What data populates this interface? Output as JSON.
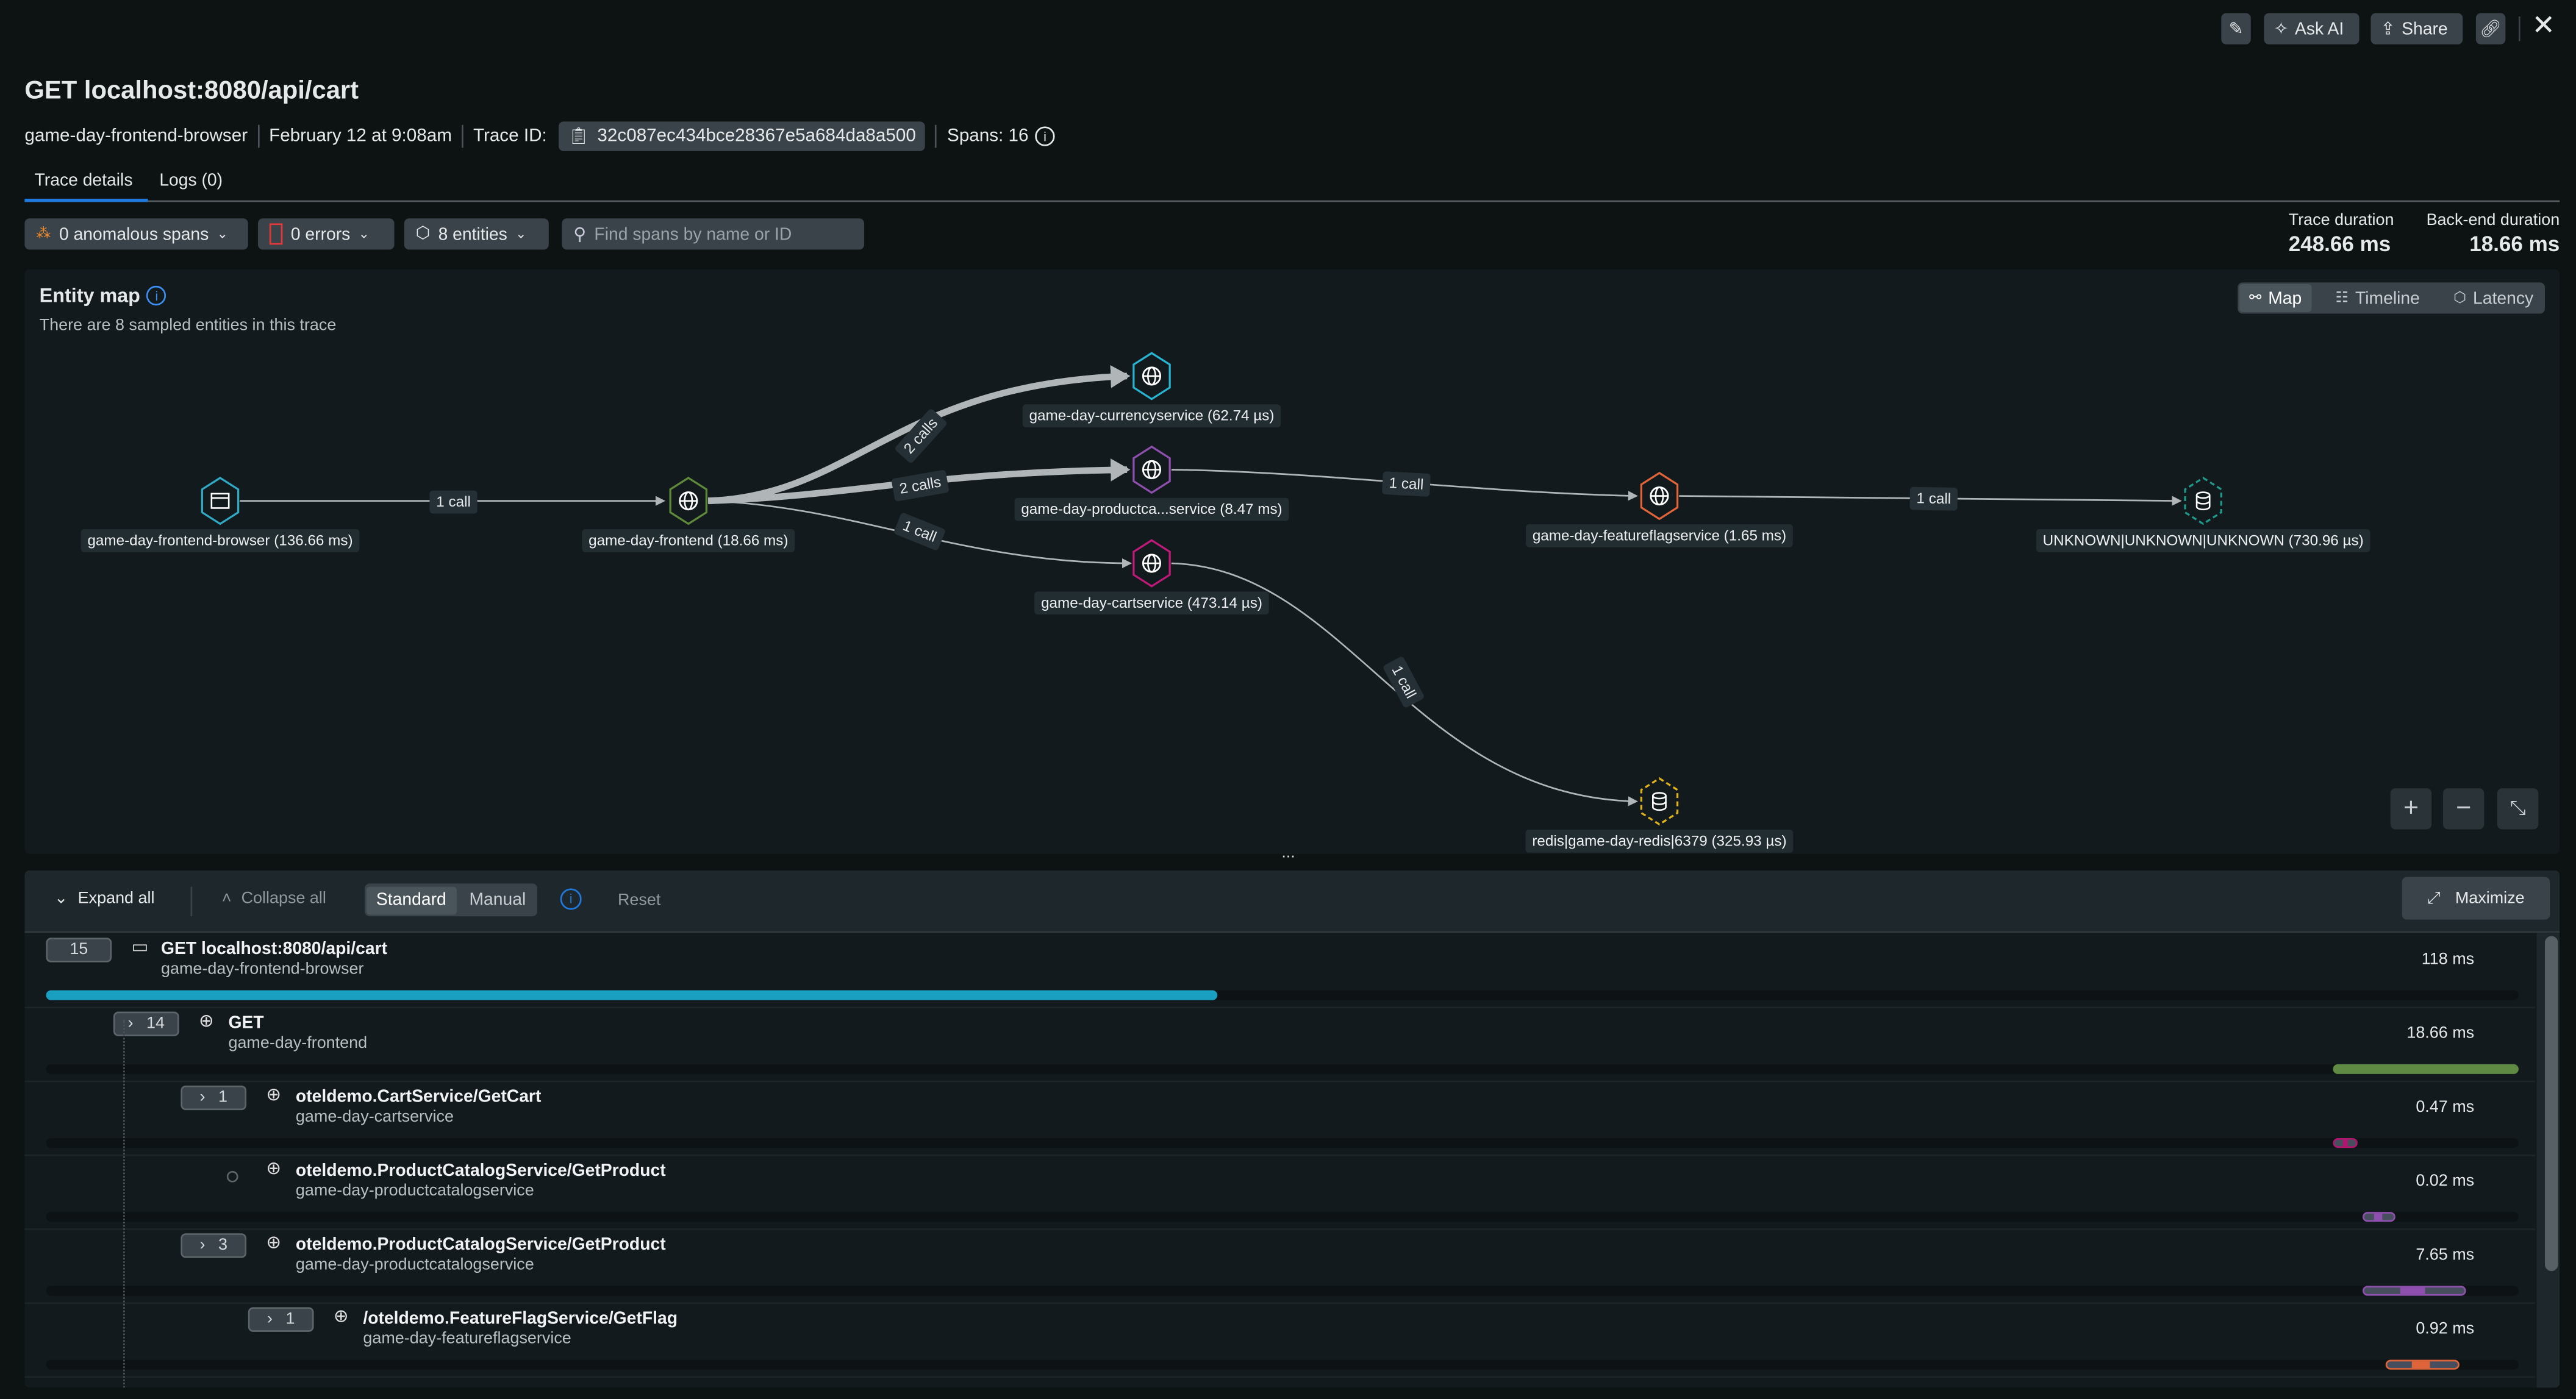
{
  "header": {
    "title": "GET localhost:8080/api/cart",
    "service": "game-day-frontend-browser",
    "timestamp": "February 12 at 9:08am",
    "trace_id_label": "Trace ID:",
    "trace_id": "32c087ec434bce28367e5a684da8a500",
    "spans_label": "Spans: 16",
    "actions": {
      "ask_ai": "Ask AI",
      "share": "Share"
    }
  },
  "tabs": [
    {
      "label": "Trace details",
      "active": true
    },
    {
      "label": "Logs (0)",
      "active": false
    }
  ],
  "filters": {
    "anomalous": "0 anomalous spans",
    "errors": "0 errors",
    "entities": "8 entities",
    "search_placeholder": "Find spans by name or ID"
  },
  "durations": {
    "trace_label": "Trace duration",
    "trace_value": "248.66 ms",
    "backend_label": "Back-end duration",
    "backend_value": "18.66 ms"
  },
  "entity_map": {
    "title": "Entity map",
    "subtitle": "There are 8 sampled entities in this trace",
    "views": [
      {
        "label": "Map",
        "active": true
      },
      {
        "label": "Timeline",
        "active": false
      },
      {
        "label": "Latency",
        "active": false
      }
    ],
    "nodes": [
      {
        "label": "game-day-frontend-browser (136.66 ms)",
        "color": "#2fa9c4",
        "icon": "browser-icon"
      },
      {
        "label": "game-day-frontend (18.66 ms)",
        "color": "#5e8a3a",
        "icon": "globe-icon"
      },
      {
        "label": "game-day-currencyservice (62.74 µs)",
        "color": "#27b3d1",
        "icon": "globe-icon"
      },
      {
        "label": "game-day-productca...service (8.47 ms)",
        "color": "#8e4fae",
        "icon": "globe-icon"
      },
      {
        "label": "game-day-cartservice (473.14 µs)",
        "color": "#c0197a",
        "icon": "globe-icon"
      },
      {
        "label": "game-day-featureflagservice (1.65 ms)",
        "color": "#e0643a",
        "icon": "globe-icon"
      },
      {
        "label": "UNKNOWN|UNKNOWN|UNKNOWN (730.96 µs)",
        "color": "#1f9a8a",
        "icon": "database-icon"
      },
      {
        "label": "redis|game-day-redis|6379 (325.93 µs)",
        "color": "#e0b21a",
        "icon": "database-icon"
      }
    ],
    "edges": [
      {
        "from": 0,
        "to": 1,
        "label": "1 call"
      },
      {
        "from": 1,
        "to": 2,
        "label": "2 calls"
      },
      {
        "from": 1,
        "to": 3,
        "label": "2 calls"
      },
      {
        "from": 1,
        "to": 4,
        "label": "1 call"
      },
      {
        "from": 3,
        "to": 5,
        "label": "1 call"
      },
      {
        "from": 5,
        "to": 6,
        "label": "1 call"
      },
      {
        "from": 4,
        "to": 7,
        "label": "1 call"
      }
    ],
    "resize_handle": "..."
  },
  "spans_toolbar": {
    "expand_all": "Expand all",
    "collapse_all": "Collapse all",
    "modes": [
      {
        "label": "Standard",
        "active": true
      },
      {
        "label": "Manual",
        "active": false
      }
    ],
    "reset": "Reset",
    "maximize": "Maximize"
  },
  "spans": [
    {
      "count": "15",
      "name": "GET localhost:8080/api/cart",
      "service": "game-day-frontend-browser",
      "duration": "118 ms",
      "color": "#1a9fc0",
      "bar_start": 0.0,
      "bar_end": 0.474,
      "icon": "browser-icon",
      "depth": 0,
      "expandable": false
    },
    {
      "count": "14",
      "name": "GET",
      "service": "game-day-frontend",
      "duration": "18.66 ms",
      "color": "#5f8a43",
      "bar_start": 0.925,
      "bar_end": 1.0,
      "icon": "globe-icon",
      "depth": 1,
      "expandable": true
    },
    {
      "count": "1",
      "name": "oteldemo.CartService/GetCart",
      "service": "game-day-cartservice",
      "duration": "0.47 ms",
      "color": "#b0156f",
      "bar_start": 0.925,
      "bar_end": 0.935,
      "icon": "globe-icon",
      "depth": 2,
      "expandable": true
    },
    {
      "count": "",
      "name": "oteldemo.ProductCatalogService/GetProduct",
      "service": "game-day-productcatalogservice",
      "duration": "0.02 ms",
      "color": "#8e4fae",
      "bar_start": 0.937,
      "bar_end": 0.95,
      "icon": "globe-icon",
      "depth": 2,
      "expandable": false
    },
    {
      "count": "3",
      "name": "oteldemo.ProductCatalogService/GetProduct",
      "service": "game-day-productcatalogservice",
      "duration": "7.65 ms",
      "color": "#8e4fae",
      "bar_start": 0.937,
      "bar_end": 0.979,
      "icon": "globe-icon",
      "depth": 2,
      "expandable": true
    },
    {
      "count": "1",
      "name": "/oteldemo.FeatureFlagService/GetFlag",
      "service": "game-day-featureflagservice",
      "duration": "0.92 ms",
      "color": "#e0643a",
      "bar_start": 0.946,
      "bar_end": 0.976,
      "icon": "globe-icon",
      "depth": 3,
      "expandable": true
    }
  ],
  "colors": {
    "accent": "#1f7ae0",
    "background": "#0d1213",
    "panel": "#131a1d",
    "button": "#394349"
  }
}
